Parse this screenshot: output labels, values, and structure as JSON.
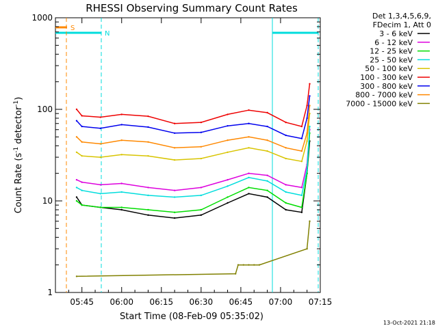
{
  "chart_data": {
    "type": "line",
    "title": "RHESSI Observing Summary Count Rates",
    "xlabel": "Start Time (08-Feb-09 05:35:02)",
    "ylabel_main": "Count Rate (s",
    "ylabel_sup1": "-1",
    "ylabel_mid": " detector",
    "ylabel_sup2": "-1",
    "ylabel_end": ")",
    "yscale": "log",
    "ylim": [
      1,
      1000
    ],
    "xlim": [
      "05:35",
      "07:15"
    ],
    "x_ticks": [
      "05:45",
      "06:00",
      "06:15",
      "06:30",
      "06:45",
      "07:00",
      "07:15"
    ],
    "y_ticks": [
      "1",
      "10",
      "100",
      "1000"
    ],
    "legend_header": [
      "Det 1,3,4,5,6,9,",
      "FDecim 1, Att 0"
    ],
    "series": [
      {
        "name": "3 - 6 keV",
        "color": "#000000",
        "x": [
          "05:43",
          "05:45",
          "05:52",
          "06:00",
          "06:10",
          "06:20",
          "06:30",
          "06:40",
          "06:48",
          "06:55",
          "07:02",
          "07:08",
          "07:10",
          "07:11"
        ],
        "values": [
          11,
          9,
          8.5,
          8,
          7,
          6.5,
          7,
          9.5,
          12,
          11,
          8,
          7.5,
          20,
          45
        ]
      },
      {
        "name": "6 - 12 keV",
        "color": "#dd00dd",
        "x": [
          "05:43",
          "05:45",
          "05:52",
          "06:00",
          "06:10",
          "06:20",
          "06:30",
          "06:40",
          "06:48",
          "06:55",
          "07:02",
          "07:08",
          "07:10",
          "07:11"
        ],
        "values": [
          17,
          16,
          15,
          15.5,
          14,
          13,
          14,
          17,
          20,
          19,
          15,
          14,
          25,
          60
        ]
      },
      {
        "name": "12 - 25 keV",
        "color": "#00dd00",
        "x": [
          "05:43",
          "05:45",
          "05:52",
          "06:00",
          "06:10",
          "06:20",
          "06:30",
          "06:40",
          "06:48",
          "06:55",
          "07:02",
          "07:08",
          "07:10",
          "07:11"
        ],
        "values": [
          10,
          9,
          8.5,
          8.5,
          8,
          7.5,
          8,
          11,
          14,
          13,
          9.5,
          8.5,
          20,
          55
        ]
      },
      {
        "name": "25 - 50 keV",
        "color": "#00dddd",
        "x": [
          "05:43",
          "05:45",
          "05:52",
          "06:00",
          "06:10",
          "06:20",
          "06:30",
          "06:40",
          "06:48",
          "06:55",
          "07:02",
          "07:08",
          "07:10",
          "07:11"
        ],
        "values": [
          14,
          13,
          12,
          12.5,
          11.5,
          11,
          11.5,
          14.5,
          18,
          16.5,
          12.5,
          11.5,
          22,
          65
        ]
      },
      {
        "name": "50 - 100 keV",
        "color": "#d8c400",
        "x": [
          "05:43",
          "05:45",
          "05:52",
          "06:00",
          "06:10",
          "06:20",
          "06:30",
          "06:40",
          "06:48",
          "06:55",
          "07:02",
          "07:08",
          "07:10",
          "07:11"
        ],
        "values": [
          34,
          31,
          30,
          32,
          31,
          28,
          29,
          34,
          38,
          35,
          29,
          27,
          45,
          90
        ]
      },
      {
        "name": "100 - 300 keV",
        "color": "#ee0000",
        "x": [
          "05:43",
          "05:45",
          "05:52",
          "06:00",
          "06:10",
          "06:20",
          "06:30",
          "06:40",
          "06:48",
          "06:55",
          "07:02",
          "07:08",
          "07:10",
          "07:11"
        ],
        "values": [
          100,
          85,
          82,
          88,
          84,
          70,
          72,
          88,
          98,
          92,
          72,
          65,
          110,
          190
        ]
      },
      {
        "name": "300 - 800 keV",
        "color": "#0000ee",
        "x": [
          "05:43",
          "05:45",
          "05:52",
          "06:00",
          "06:10",
          "06:20",
          "06:30",
          "06:40",
          "06:48",
          "06:55",
          "07:02",
          "07:08",
          "07:10",
          "07:11"
        ],
        "values": [
          75,
          65,
          62,
          68,
          64,
          55,
          56,
          66,
          70,
          65,
          52,
          48,
          80,
          140
        ]
      },
      {
        "name": "800 - 7000 keV",
        "color": "#ff8800",
        "x": [
          "05:43",
          "05:45",
          "05:52",
          "06:00",
          "06:10",
          "06:20",
          "06:30",
          "06:40",
          "06:48",
          "06:55",
          "07:02",
          "07:08",
          "07:10",
          "07:11"
        ],
        "values": [
          50,
          44,
          42,
          46,
          44,
          38,
          39,
          46,
          50,
          46,
          38,
          35,
          55,
          110
        ]
      },
      {
        "name": "7000 - 15000 keV",
        "color": "#808000",
        "x": [
          "05:43",
          "06:43",
          "06:44",
          "06:46",
          "06:48",
          "06:50",
          "06:52",
          "07:10",
          "07:11"
        ],
        "values": [
          1.5,
          1.6,
          2,
          2,
          2,
          2,
          2,
          3,
          6
        ]
      }
    ],
    "annotations": {
      "attenuator_state_label": "S",
      "night_label": "N",
      "colors": {
        "attenuator": "#ff8800",
        "night": "#00dddd"
      }
    },
    "grid": false,
    "legend_position": "right"
  },
  "footer": {
    "timestamp": "13-Oct-2021 21:18"
  }
}
